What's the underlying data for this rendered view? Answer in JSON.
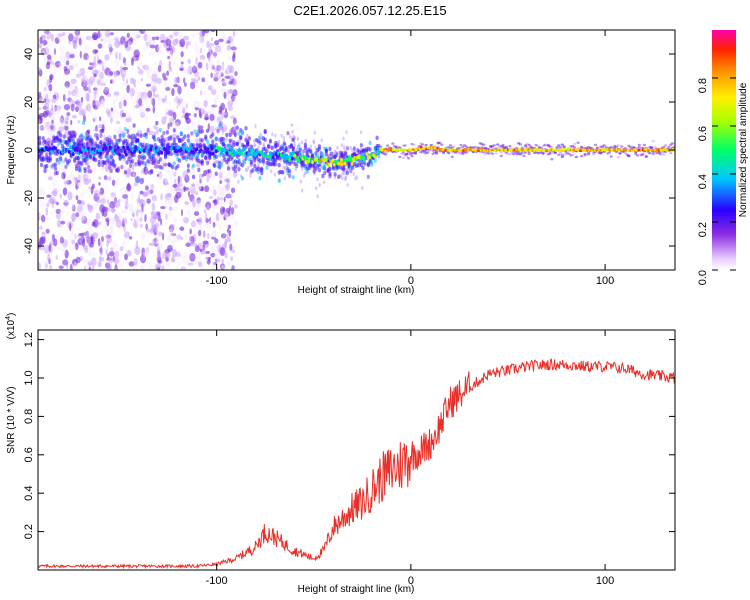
{
  "title": "C2E1.2026.057.12.25.E15",
  "chart_data": [
    {
      "type": "heatmap",
      "title": "C2E1.2026.057.12.25.E15",
      "xlabel": "Height of straight line (km)",
      "ylabel": "Frequency (Hz)",
      "xlim": [
        -192,
        136
      ],
      "ylim": [
        -50,
        50
      ],
      "x_ticks": [
        -100,
        0,
        100
      ],
      "x_tick_labels": [
        "-100",
        "0",
        "100"
      ],
      "y_ticks": [
        -40,
        -20,
        0,
        20,
        40
      ],
      "y_tick_labels": [
        "-40",
        "-20",
        "0",
        "20",
        "40"
      ],
      "colorbar": {
        "label": "Normalized spectral amplitude",
        "range": [
          0,
          1
        ],
        "ticks": [
          0.0,
          0.2,
          0.4,
          0.6,
          0.8
        ],
        "tick_labels": [
          "0.0",
          "0.2",
          "0.4",
          "0.6",
          "0.8"
        ]
      },
      "ridge": {
        "description_points_x": [
          -190,
          -100,
          -60,
          -40,
          -30,
          -20,
          -15,
          0,
          10,
          20,
          60,
          100,
          136
        ],
        "frequency_hz": [
          0,
          0,
          -3,
          -5,
          -4,
          -2,
          0,
          0,
          1,
          0,
          0,
          0,
          0
        ]
      }
    },
    {
      "type": "line",
      "xlabel": "Height of straight line (km)",
      "ylabel": "SNR (10 * V/V)",
      "y_scale_note": "(x10",
      "y_scale_exp": "4",
      "y_scale_close": ")",
      "xlim": [
        -192,
        136
      ],
      "ylim": [
        0,
        1.25
      ],
      "x_ticks": [
        -100,
        0,
        100
      ],
      "x_tick_labels": [
        "-100",
        "0",
        "100"
      ],
      "y_ticks": [
        0.2,
        0.4,
        0.6,
        0.8,
        1.0,
        1.2
      ],
      "y_tick_labels": [
        "0.2",
        "0.4",
        "0.6",
        "0.8",
        "1.0",
        "1.2"
      ],
      "series": [
        {
          "name": "SNR",
          "color": "#e8302a",
          "x": [
            -192,
            -150,
            -110,
            -100,
            -90,
            -80,
            -75,
            -70,
            -60,
            -50,
            -45,
            -40,
            -30,
            -25,
            -20,
            -15,
            -10,
            -5,
            0,
            5,
            10,
            15,
            20,
            30,
            40,
            50,
            60,
            70,
            80,
            90,
            100,
            110,
            120,
            136
          ],
          "y": [
            0.02,
            0.02,
            0.02,
            0.03,
            0.06,
            0.12,
            0.2,
            0.17,
            0.1,
            0.06,
            0.1,
            0.22,
            0.32,
            0.35,
            0.42,
            0.48,
            0.52,
            0.55,
            0.6,
            0.62,
            0.66,
            0.75,
            0.87,
            0.95,
            1.02,
            1.04,
            1.06,
            1.07,
            1.07,
            1.06,
            1.06,
            1.05,
            1.02,
            1.0
          ]
        }
      ]
    }
  ]
}
